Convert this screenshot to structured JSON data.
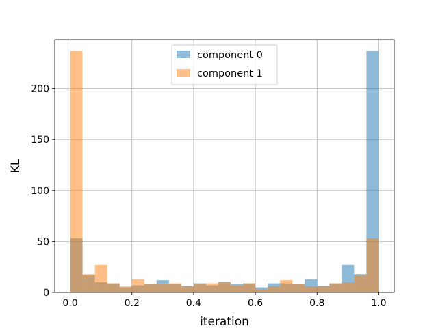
{
  "chart_data": {
    "type": "bar",
    "subtype": "overlapping-histogram",
    "xlabel": "iteration",
    "ylabel": "KL",
    "xlim": [
      -0.05,
      1.05
    ],
    "ylim": [
      0,
      248
    ],
    "x_ticks": [
      0.0,
      0.2,
      0.4,
      0.6,
      0.8,
      1.0
    ],
    "x_tick_labels": [
      "0.0",
      "0.2",
      "0.4",
      "0.6",
      "0.8",
      "1.0"
    ],
    "y_ticks": [
      0,
      50,
      100,
      150,
      200
    ],
    "y_tick_labels": [
      "0",
      "50",
      "100",
      "150",
      "200"
    ],
    "grid": true,
    "legend_position": "top-center",
    "bin_edges": [
      0.0,
      0.04,
      0.08,
      0.12,
      0.16,
      0.2,
      0.24,
      0.28,
      0.32,
      0.36,
      0.4,
      0.44,
      0.48,
      0.52,
      0.56,
      0.6,
      0.64,
      0.68,
      0.72,
      0.76,
      0.8,
      0.84,
      0.88,
      0.92,
      0.96,
      1.0
    ],
    "series": [
      {
        "name": "component 0",
        "color": "#1f77b4",
        "opacity": 0.5,
        "values": [
          53,
          17,
          10,
          9,
          5,
          7,
          8,
          12,
          8,
          6,
          9,
          7,
          10,
          8,
          9,
          5,
          9,
          9,
          8,
          13,
          6,
          9,
          27,
          18,
          237
        ]
      },
      {
        "name": "component 1",
        "color": "#ff7f0e",
        "opacity": 0.5,
        "values": [
          237,
          18,
          27,
          9,
          6,
          13,
          8,
          8,
          9,
          6,
          8,
          9,
          10,
          7,
          9,
          3,
          6,
          12,
          8,
          6,
          6,
          9,
          10,
          17,
          53
        ]
      }
    ]
  }
}
